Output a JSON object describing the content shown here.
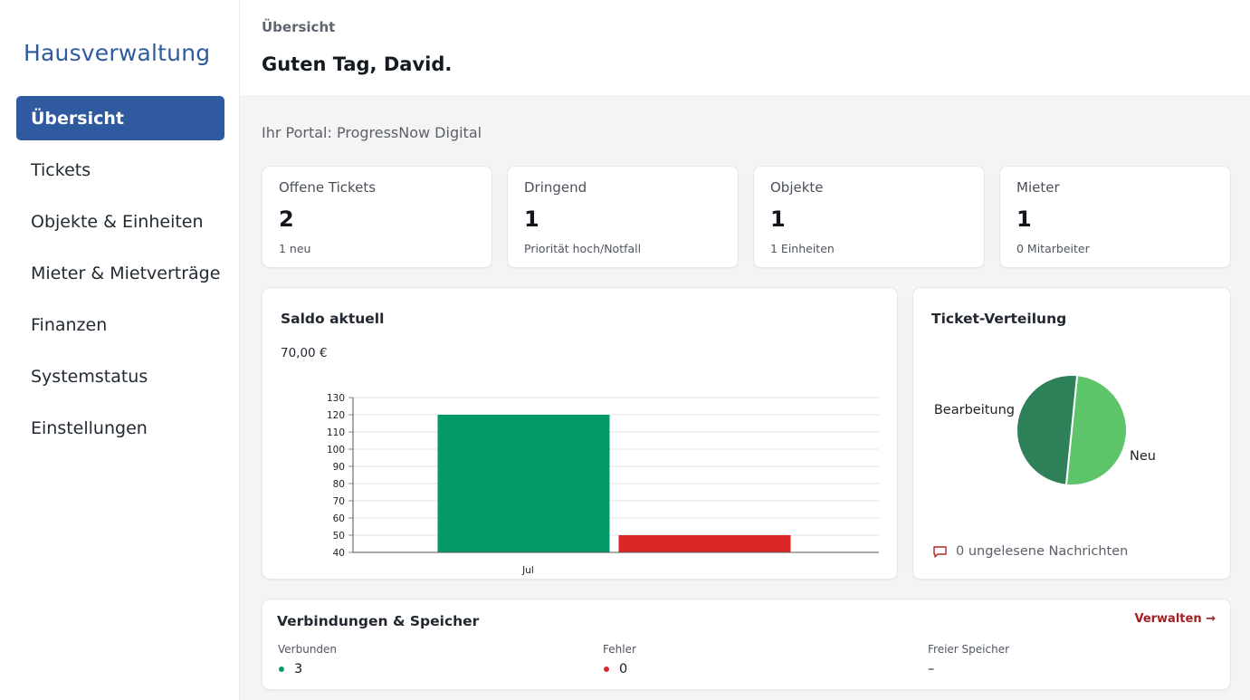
{
  "sidebar": {
    "brand": "Hausverwaltung",
    "items": [
      {
        "label": "Übersicht",
        "active": true
      },
      {
        "label": "Tickets"
      },
      {
        "label": "Objekte & Einheiten"
      },
      {
        "label": "Mieter & Mietverträge"
      },
      {
        "label": "Finanzen"
      },
      {
        "label": "Systemstatus"
      },
      {
        "label": "Einstellungen"
      }
    ]
  },
  "header": {
    "breadcrumb": "Übersicht",
    "greeting": "Guten Tag, David."
  },
  "main": {
    "portal": "Ihr Portal: ProgressNow Digital",
    "stats": [
      {
        "label": "Offene Tickets",
        "value": "2",
        "sub": "1 neu"
      },
      {
        "label": "Dringend",
        "value": "1",
        "sub": "Priorität hoch/Notfall"
      },
      {
        "label": "Objekte",
        "value": "1",
        "sub": "1 Einheiten"
      },
      {
        "label": "Mieter",
        "value": "1",
        "sub": "0 Mitarbeiter"
      }
    ],
    "saldo": {
      "title": "Saldo aktuell",
      "value": "70,00 €"
    },
    "tickets": {
      "title": "Ticket-Verteilung",
      "messages": "0 ungelesene Nachrichten",
      "message_icon": "chat-bubble-icon"
    },
    "connections": {
      "title": "Verbindungen & Speicher",
      "link": "Verwalten →",
      "columns": [
        {
          "label": "Verbunden",
          "value": "3",
          "dot": "#0a9a67"
        },
        {
          "label": "Fehler",
          "value": "0",
          "dot": "#d9282b"
        },
        {
          "label": "Freier Speicher",
          "value": "–"
        }
      ]
    }
  },
  "chart_data": [
    {
      "type": "bar",
      "categories": [
        "Jul"
      ],
      "series": [
        {
          "values": [
            120
          ],
          "color": "#069968"
        },
        {
          "values": [
            50
          ],
          "color": "#dc2626"
        }
      ],
      "yticks": [
        40,
        50,
        60,
        70,
        80,
        90,
        100,
        110,
        120,
        130
      ],
      "ylim": [
        40,
        130
      ],
      "grid": true
    },
    {
      "type": "pie",
      "slices": [
        {
          "label": "Bearbeitung",
          "value": 1,
          "color": "#5dc46a"
        },
        {
          "label": "Neu",
          "value": 1,
          "color": "#2e8059"
        }
      ]
    }
  ]
}
